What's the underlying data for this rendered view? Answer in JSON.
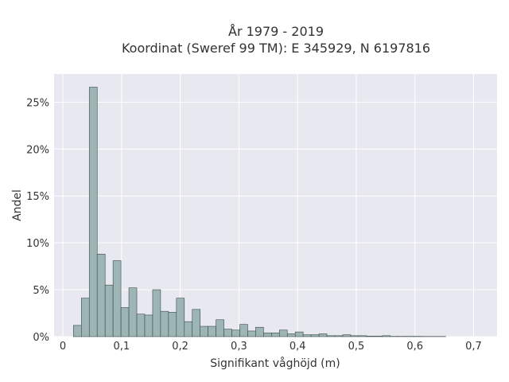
{
  "chart_data": {
    "type": "bar",
    "title_line1": "År 1979 - 2019",
    "title_line2": "Koordinat (Sweref 99 TM): E 345929, N 6197816",
    "xlabel": "Signifikant våghöjd (m)",
    "ylabel": "Andel",
    "xlim": [
      -0.015,
      0.74
    ],
    "ylim": [
      0,
      0.28
    ],
    "x_ticks": [
      0,
      0.1,
      0.2,
      0.3,
      0.4,
      0.5,
      0.6,
      0.7
    ],
    "x_tick_labels": [
      "0",
      "0,1",
      "0,2",
      "0,3",
      "0,4",
      "0,5",
      "0,6",
      "0,7"
    ],
    "y_ticks": [
      0,
      0.05,
      0.1,
      0.15,
      0.2,
      0.25
    ],
    "y_tick_labels": [
      "0%",
      "5%",
      "10%",
      "15%",
      "20%",
      "25%"
    ],
    "bin_start": 0.018,
    "bin_width": 0.0135,
    "values": [
      0.012,
      0.041,
      0.266,
      0.088,
      0.055,
      0.081,
      0.031,
      0.052,
      0.024,
      0.023,
      0.05,
      0.027,
      0.026,
      0.041,
      0.016,
      0.029,
      0.011,
      0.011,
      0.018,
      0.008,
      0.007,
      0.013,
      0.006,
      0.01,
      0.004,
      0.004,
      0.007,
      0.003,
      0.005,
      0.002,
      0.002,
      0.003,
      0.001,
      0.001,
      0.002,
      0.001,
      0.001,
      0.0005,
      0.0005,
      0.001,
      0.0003,
      0.0003,
      0.0003,
      0.0003,
      0.0002,
      0.0002,
      0.0002
    ],
    "grid": true,
    "colors": {
      "bar_fill": "#9db5b5",
      "bar_stroke": "#3c4a4a",
      "plot_bg": "#e8e8f0",
      "grid": "#ffffff"
    }
  }
}
